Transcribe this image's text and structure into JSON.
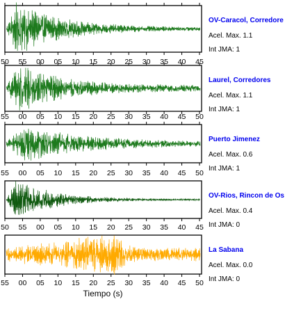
{
  "chart_data": {
    "type": "line",
    "xlabel": "Tiempo (s)",
    "panels": [
      {
        "station": "OV-Caracol, Corredore",
        "max_accel_label": "Acel. Max. 1.1",
        "jma_label": "Int JMA: 1",
        "color": "#1d7a1d",
        "x_ticks": [
          "50",
          "55",
          "00",
          "05",
          "10",
          "15",
          "20",
          "25",
          "30",
          "35",
          "40",
          "45"
        ],
        "ticks_on": "top",
        "waveform": {
          "peak_seconds": 3,
          "amplitude": 0.95,
          "decay_seconds": 14,
          "floor": 0.05
        }
      },
      {
        "station": "Laurel, Corredores",
        "max_accel_label": "Acel. Max. 1.1",
        "jma_label": "Int JMA: 1",
        "color": "#1d7a1d",
        "x_ticks": [
          "55",
          "00",
          "05",
          "10",
          "15",
          "20",
          "25",
          "30",
          "35",
          "40",
          "45",
          "50"
        ],
        "ticks_on": "top",
        "waveform": {
          "peak_seconds": 4,
          "amplitude": 0.95,
          "decay_seconds": 12,
          "floor": 0.12
        }
      },
      {
        "station": "Puerto Jimenez",
        "max_accel_label": "Acel. Max. 0.6",
        "jma_label": "Int JMA: 1",
        "color": "#1d7a1d",
        "x_ticks": [
          "55",
          "00",
          "05",
          "10",
          "15",
          "20",
          "25",
          "30",
          "35",
          "40",
          "45",
          "50"
        ],
        "ticks_on": "top",
        "waveform": {
          "peak_seconds": 6,
          "amplitude": 0.85,
          "decay_seconds": 16,
          "floor": 0.1
        }
      },
      {
        "station": "OV-Rios, Rincon de Os",
        "max_accel_label": "Acel. Max. 0.4",
        "jma_label": "Int JMA: 0",
        "color": "#0f5a0f",
        "x_ticks": [
          "50",
          "55",
          "00",
          "05",
          "10",
          "15",
          "20",
          "25",
          "30",
          "35",
          "40",
          "45"
        ],
        "ticks_on": "bottom",
        "waveform": {
          "peak_seconds": 3,
          "amplitude": 0.95,
          "decay_seconds": 11,
          "floor": 0.03
        }
      },
      {
        "station": "La Sabana",
        "max_accel_label": "Acel. Max. 0.0",
        "jma_label": "Int JMA: 0",
        "color": "#ffaa00",
        "x_ticks": [
          "55",
          "00",
          "05",
          "10",
          "15",
          "20",
          "25",
          "30",
          "35",
          "40",
          "45",
          "50"
        ],
        "ticks_on": "bottom",
        "waveform": {
          "peak_seconds": 32,
          "amplitude": 0.95,
          "decay_seconds": 3,
          "floor": 0.3
        }
      }
    ]
  }
}
